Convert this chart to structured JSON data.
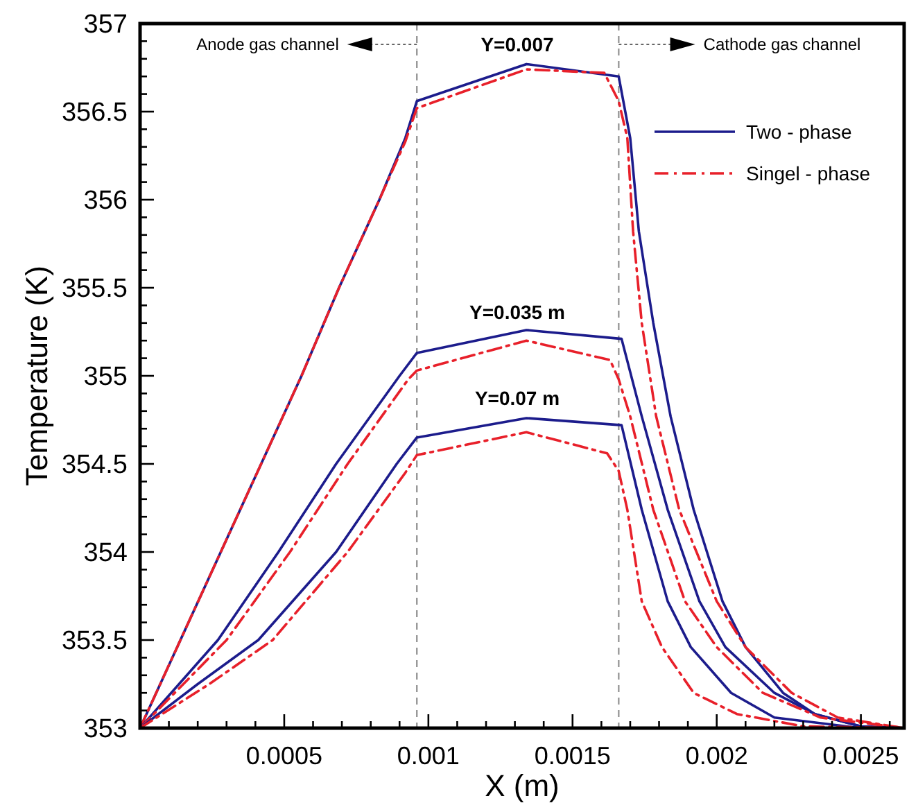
{
  "chart_data": {
    "type": "line",
    "xlabel": "X (m)",
    "ylabel": "Temperature (K)",
    "xlim": [
      0,
      0.00265
    ],
    "ylim": [
      353,
      357
    ],
    "xticks": [
      {
        "value": 0.0001,
        "label": null
      },
      {
        "value": 0.0002,
        "label": null
      },
      {
        "value": 0.0003,
        "label": null
      },
      {
        "value": 0.0004,
        "label": null
      },
      0.0005,
      {
        "value": 0.0006,
        "label": null
      },
      {
        "value": 0.0007,
        "label": null
      },
      {
        "value": 0.0008,
        "label": null
      },
      {
        "value": 0.0009,
        "label": null
      },
      0.001,
      {
        "value": 0.0011,
        "label": null
      },
      {
        "value": 0.0012,
        "label": null
      },
      {
        "value": 0.0013,
        "label": null
      },
      {
        "value": 0.0014,
        "label": null
      },
      0.0015,
      {
        "value": 0.0016,
        "label": null
      },
      {
        "value": 0.0017,
        "label": null
      },
      {
        "value": 0.0018,
        "label": null
      },
      {
        "value": 0.0019,
        "label": null
      },
      0.002,
      {
        "value": 0.0021,
        "label": null
      },
      {
        "value": 0.0022,
        "label": null
      },
      {
        "value": 0.0023,
        "label": null
      },
      {
        "value": 0.0024,
        "label": null
      },
      0.0025,
      {
        "value": 0.0026,
        "label": null
      }
    ],
    "yticks": [
      353,
      {
        "value": 353.1,
        "label": null
      },
      {
        "value": 353.2,
        "label": null
      },
      {
        "value": 353.3,
        "label": null
      },
      {
        "value": 353.4,
        "label": null
      },
      353.5,
      {
        "value": 353.6,
        "label": null
      },
      {
        "value": 353.7,
        "label": null
      },
      {
        "value": 353.8,
        "label": null
      },
      {
        "value": 353.9,
        "label": null
      },
      354,
      {
        "value": 354.1,
        "label": null
      },
      {
        "value": 354.2,
        "label": null
      },
      {
        "value": 354.3,
        "label": null
      },
      {
        "value": 354.4,
        "label": null
      },
      354.5,
      {
        "value": 354.6,
        "label": null
      },
      {
        "value": 354.7,
        "label": null
      },
      {
        "value": 354.8,
        "label": null
      },
      {
        "value": 354.9,
        "label": null
      },
      355,
      {
        "value": 355.1,
        "label": null
      },
      {
        "value": 355.2,
        "label": null
      },
      {
        "value": 355.3,
        "label": null
      },
      {
        "value": 355.4,
        "label": null
      },
      355.5,
      {
        "value": 355.6,
        "label": null
      },
      {
        "value": 355.7,
        "label": null
      },
      {
        "value": 355.8,
        "label": null
      },
      {
        "value": 355.9,
        "label": null
      },
      356,
      {
        "value": 356.1,
        "label": null
      },
      {
        "value": 356.2,
        "label": null
      },
      {
        "value": 356.3,
        "label": null
      },
      {
        "value": 356.4,
        "label": null
      },
      356.5,
      {
        "value": 356.6,
        "label": null
      },
      {
        "value": 356.7,
        "label": null
      },
      {
        "value": 356.8,
        "label": null
      },
      {
        "value": 356.9,
        "label": null
      },
      357
    ],
    "grid": false,
    "legend": "top right",
    "ref_lines": [
      {
        "axis": "x",
        "value": 0.00096,
        "color": "#999999",
        "line_style": "dashed"
      },
      {
        "axis": "x",
        "value": 0.00166,
        "color": "#999999",
        "line_style": "dashed"
      }
    ],
    "annotations": [
      "Anode gas channel",
      "Cathode gas channel",
      "Y=0.007",
      "Y=0.035 m",
      "Y=0.07 m"
    ],
    "series": [
      {
        "name": "Two - phase",
        "color": "#1c1c8c",
        "line_style": "solid",
        "x": [
          0,
          0.00014,
          0.00028,
          0.00042,
          0.00056,
          0.00069,
          0.00083,
          0.00092,
          0.00096,
          0.00134,
          0.00166,
          0.0017,
          0.00173,
          0.00178,
          0.00184,
          0.00192,
          0.00202,
          0.0021,
          0.00223,
          0.00234,
          0.0025,
          0.00265
        ],
        "values": [
          353,
          353.5,
          354,
          354.5,
          355,
          355.5,
          356,
          356.35,
          356.56,
          356.77,
          356.7,
          356.35,
          355.82,
          355.3,
          354.77,
          354.24,
          353.72,
          353.46,
          353.2,
          353.08,
          353.01,
          353
        ]
      },
      {
        "name": "Singel - phase",
        "color": "#e8202a",
        "line_style": "dashdot",
        "x": [
          0,
          0.00014,
          0.00028,
          0.00042,
          0.00056,
          0.00069,
          0.00083,
          0.00092,
          0.00096,
          0.00134,
          0.00161,
          0.00166,
          0.00169,
          0.00171,
          0.00174,
          0.00179,
          0.00187,
          0.002,
          0.0021,
          0.00226,
          0.00242,
          0.00265
        ],
        "values": [
          353,
          353.5,
          354,
          354.5,
          355,
          355.5,
          356,
          356.33,
          356.52,
          356.74,
          356.72,
          356.56,
          356.35,
          355.82,
          355.3,
          354.77,
          354.24,
          353.72,
          353.46,
          353.2,
          353.06,
          353
        ]
      },
      {
        "color": "#1c1c8c",
        "line_style": "solid",
        "x": [
          0,
          0.00027,
          0.00048,
          0.00068,
          0.0009,
          0.00096,
          0.00134,
          0.00167,
          0.00174,
          0.00183,
          0.00194,
          0.00203,
          0.0022,
          0.00234,
          0.0025,
          0.00265
        ],
        "values": [
          353,
          353.5,
          354,
          354.5,
          355,
          355.13,
          355.26,
          355.21,
          354.77,
          354.24,
          353.72,
          353.46,
          353.2,
          353.08,
          353.01,
          353
        ]
      },
      {
        "color": "#e8202a",
        "line_style": "dashdot",
        "x": [
          0,
          0.0003,
          0.00052,
          0.00072,
          0.00093,
          0.00096,
          0.00134,
          0.00163,
          0.00166,
          0.0017,
          0.00178,
          0.00189,
          0.002,
          0.00216,
          0.00236,
          0.00265
        ],
        "values": [
          353,
          353.5,
          354,
          354.5,
          354.98,
          355.03,
          355.2,
          355.09,
          354.98,
          354.77,
          354.24,
          353.72,
          353.46,
          353.2,
          353.06,
          353
        ]
      },
      {
        "color": "#1c1c8c",
        "line_style": "solid",
        "x": [
          0,
          0.0002,
          0.00041,
          0.00068,
          0.00089,
          0.00096,
          0.00134,
          0.00167,
          0.00174,
          0.00183,
          0.00191,
          0.00205,
          0.0022,
          0.0025,
          0.00265
        ],
        "values": [
          353,
          353.25,
          353.5,
          354,
          354.5,
          354.65,
          354.76,
          354.72,
          354.24,
          353.72,
          353.46,
          353.2,
          353.06,
          353,
          353
        ]
      },
      {
        "color": "#e8202a",
        "line_style": "dashdot",
        "x": [
          0,
          0.00024,
          0.00046,
          0.00072,
          0.00092,
          0.00096,
          0.00134,
          0.00162,
          0.00166,
          0.00169,
          0.00174,
          0.00181,
          0.00192,
          0.00207,
          0.0023,
          0.00265
        ],
        "values": [
          353,
          353.25,
          353.5,
          354,
          354.45,
          354.55,
          354.68,
          354.56,
          354.46,
          354.24,
          353.72,
          353.46,
          353.2,
          353.08,
          353.01,
          353
        ]
      }
    ]
  }
}
